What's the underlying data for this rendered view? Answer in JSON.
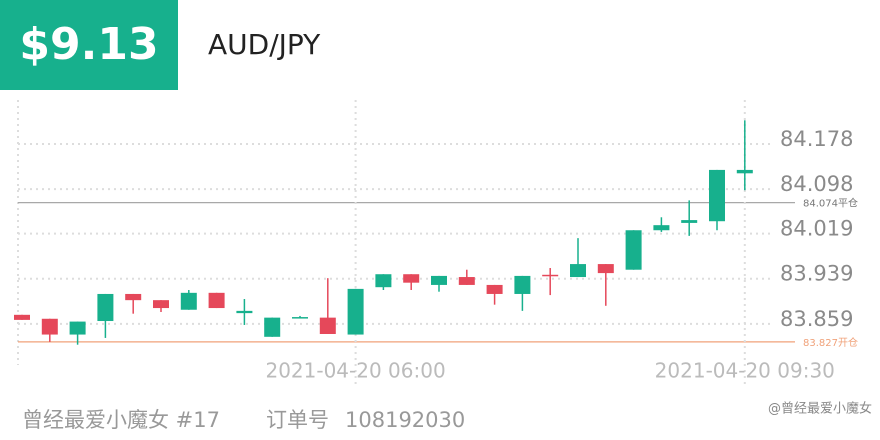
{
  "header": {
    "price": "$9.13",
    "symbol": "AUD/JPY"
  },
  "chart_data": {
    "type": "candlestick",
    "categories": [
      null,
      null,
      null,
      null,
      null,
      null,
      null,
      null,
      null,
      null,
      null,
      null,
      "2021-04-20 06:00",
      null,
      null,
      null,
      null,
      null,
      null,
      null,
      null,
      null,
      null,
      null,
      null,
      null,
      "2021-04-20 09:30"
    ],
    "open": [
      83.875,
      83.868,
      83.84,
      83.864,
      83.912,
      83.901,
      83.884,
      83.914,
      83.878,
      83.836,
      83.871,
      83.87,
      83.84,
      83.924,
      83.947,
      83.928,
      83.942,
      83.928,
      83.912,
      83.946,
      83.942,
      83.965,
      83.955,
      84.025,
      84.038,
      84.041,
      84.126
    ],
    "high": [
      83.875,
      83.868,
      83.863,
      83.912,
      83.912,
      83.901,
      83.919,
      83.914,
      83.903,
      83.87,
      83.873,
      83.94,
      83.921,
      83.947,
      83.947,
      83.944,
      83.955,
      83.928,
      83.944,
      83.958,
      84.011,
      83.965,
      84.025,
      84.048,
      84.078,
      84.132,
      84.22
    ],
    "low": [
      83.866,
      83.827,
      83.822,
      83.834,
      83.877,
      83.88,
      83.884,
      83.887,
      83.857,
      83.836,
      83.87,
      83.841,
      83.84,
      83.919,
      83.919,
      83.916,
      83.928,
      83.893,
      83.882,
      83.91,
      83.942,
      83.891,
      83.955,
      84.022,
      84.015,
      84.025,
      84.096
    ],
    "close": [
      83.866,
      83.84,
      83.863,
      83.912,
      83.901,
      83.887,
      83.914,
      83.887,
      83.882,
      83.87,
      83.871,
      83.841,
      83.921,
      83.947,
      83.932,
      83.944,
      83.928,
      83.912,
      83.944,
      83.945,
      83.965,
      83.949,
      84.025,
      84.034,
      84.043,
      84.132,
      84.132
    ],
    "up_color": "#17b08d",
    "down_color": "#e5485a",
    "ylim": [
      83.786,
      84.256
    ],
    "yticks": [
      83.859,
      83.939,
      84.019,
      84.098,
      84.178
    ],
    "grid": true,
    "hlines": [
      {
        "value": 84.074,
        "label": "84.074平仓",
        "color": "#a8a8a8"
      },
      {
        "value": 83.827,
        "label": "83.827开仓",
        "color": "#f0a27a"
      }
    ]
  },
  "footer": {
    "user": "曾经最爱小魔女 #17",
    "order_label": "订单号",
    "order_number": "108192030",
    "watermark": "@曾经最爱小魔女"
  }
}
